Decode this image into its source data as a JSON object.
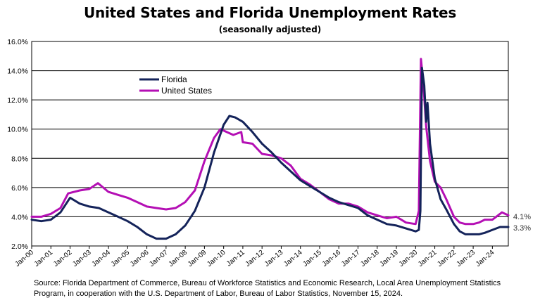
{
  "chart_data": {
    "type": "line",
    "title": "United States and Florida Unemployment Rates",
    "subtitle": "(seasonally adjusted)",
    "xlabel": "",
    "ylabel": "",
    "ylim": [
      2,
      16
    ],
    "yticks": [
      "16.0%",
      "14.0%",
      "12.0%",
      "10.0%",
      "8.0%",
      "6.0%",
      "4.0%",
      "2.0%"
    ],
    "ytick_values": [
      16,
      14,
      12,
      10,
      8,
      6,
      4,
      2
    ],
    "xticks": [
      "Jan-00",
      "Jan-01",
      "Jan-02",
      "Jan-03",
      "Jan-04",
      "Jan-05",
      "Jan-06",
      "Jan-07",
      "Jan-08",
      "Jan-09",
      "Jan-10",
      "Jan-11",
      "Jan-12",
      "Jan-13",
      "Jan-14",
      "Jan-15",
      "Jan-16",
      "Jan-17",
      "Jan-18",
      "Jan-19",
      "Jan-20",
      "Jan-21",
      "Jan-22",
      "Jan-23",
      "Jan-24"
    ],
    "xlim": [
      2000.0,
      2024.83
    ],
    "grid": "horizontal",
    "legend": "upper-left",
    "series": [
      {
        "name": "Florida",
        "color": "#14235a",
        "end_label": "3.3%",
        "points": [
          [
            2000.0,
            3.8
          ],
          [
            2000.5,
            3.7
          ],
          [
            2001.0,
            3.8
          ],
          [
            2001.5,
            4.3
          ],
          [
            2001.9,
            5.1
          ],
          [
            2002.0,
            5.3
          ],
          [
            2002.5,
            4.9
          ],
          [
            2003.0,
            4.7
          ],
          [
            2003.5,
            4.6
          ],
          [
            2004.0,
            4.3
          ],
          [
            2004.5,
            4.0
          ],
          [
            2005.0,
            3.7
          ],
          [
            2005.5,
            3.3
          ],
          [
            2006.0,
            2.8
          ],
          [
            2006.5,
            2.5
          ],
          [
            2007.0,
            2.5
          ],
          [
            2007.5,
            2.8
          ],
          [
            2008.0,
            3.4
          ],
          [
            2008.5,
            4.4
          ],
          [
            2009.0,
            6.0
          ],
          [
            2009.5,
            8.4
          ],
          [
            2010.0,
            10.3
          ],
          [
            2010.3,
            10.9
          ],
          [
            2010.6,
            10.8
          ],
          [
            2011.0,
            10.5
          ],
          [
            2011.5,
            9.8
          ],
          [
            2012.0,
            9.0
          ],
          [
            2012.5,
            8.4
          ],
          [
            2013.0,
            7.7
          ],
          [
            2013.5,
            7.1
          ],
          [
            2014.0,
            6.5
          ],
          [
            2014.5,
            6.1
          ],
          [
            2015.0,
            5.7
          ],
          [
            2015.5,
            5.3
          ],
          [
            2016.0,
            5.0
          ],
          [
            2016.5,
            4.8
          ],
          [
            2017.0,
            4.6
          ],
          [
            2017.5,
            4.1
          ],
          [
            2018.0,
            3.8
          ],
          [
            2018.5,
            3.5
          ],
          [
            2019.0,
            3.4
          ],
          [
            2019.5,
            3.2
          ],
          [
            2020.0,
            3.0
          ],
          [
            2020.17,
            3.1
          ],
          [
            2020.25,
            4.4
          ],
          [
            2020.33,
            14.2
          ],
          [
            2020.45,
            13.0
          ],
          [
            2020.55,
            10.5
          ],
          [
            2020.62,
            11.8
          ],
          [
            2020.75,
            9.0
          ],
          [
            2021.0,
            6.6
          ],
          [
            2021.3,
            5.2
          ],
          [
            2021.6,
            4.5
          ],
          [
            2022.0,
            3.5
          ],
          [
            2022.3,
            3.0
          ],
          [
            2022.6,
            2.8
          ],
          [
            2023.0,
            2.8
          ],
          [
            2023.3,
            2.8
          ],
          [
            2023.6,
            2.9
          ],
          [
            2024.0,
            3.1
          ],
          [
            2024.4,
            3.3
          ],
          [
            2024.83,
            3.3
          ]
        ]
      },
      {
        "name": "United States",
        "color": "#b40fb4",
        "end_label": "4.1%",
        "points": [
          [
            2000.0,
            4.0
          ],
          [
            2000.5,
            4.0
          ],
          [
            2001.0,
            4.2
          ],
          [
            2001.5,
            4.6
          ],
          [
            2001.9,
            5.6
          ],
          [
            2002.5,
            5.8
          ],
          [
            2003.0,
            5.9
          ],
          [
            2003.45,
            6.3
          ],
          [
            2004.0,
            5.7
          ],
          [
            2004.5,
            5.5
          ],
          [
            2005.0,
            5.3
          ],
          [
            2005.5,
            5.0
          ],
          [
            2006.0,
            4.7
          ],
          [
            2006.5,
            4.6
          ],
          [
            2007.0,
            4.5
          ],
          [
            2007.5,
            4.6
          ],
          [
            2008.0,
            5.0
          ],
          [
            2008.5,
            5.8
          ],
          [
            2009.0,
            7.8
          ],
          [
            2009.5,
            9.4
          ],
          [
            2009.83,
            10.0
          ],
          [
            2010.5,
            9.6
          ],
          [
            2010.92,
            9.8
          ],
          [
            2011.0,
            9.1
          ],
          [
            2011.5,
            9.0
          ],
          [
            2012.0,
            8.3
          ],
          [
            2012.5,
            8.2
          ],
          [
            2013.0,
            8.0
          ],
          [
            2013.5,
            7.5
          ],
          [
            2014.0,
            6.6
          ],
          [
            2014.5,
            6.2
          ],
          [
            2015.0,
            5.7
          ],
          [
            2015.5,
            5.2
          ],
          [
            2016.0,
            4.9
          ],
          [
            2016.5,
            4.9
          ],
          [
            2017.0,
            4.7
          ],
          [
            2017.5,
            4.3
          ],
          [
            2018.0,
            4.1
          ],
          [
            2018.5,
            3.9
          ],
          [
            2019.0,
            4.0
          ],
          [
            2019.5,
            3.6
          ],
          [
            2020.0,
            3.5
          ],
          [
            2020.17,
            4.4
          ],
          [
            2020.28,
            14.8
          ],
          [
            2020.4,
            13.2
          ],
          [
            2020.55,
            10.2
          ],
          [
            2020.75,
            7.8
          ],
          [
            2021.0,
            6.4
          ],
          [
            2021.3,
            6.0
          ],
          [
            2021.6,
            5.2
          ],
          [
            2022.0,
            4.0
          ],
          [
            2022.3,
            3.6
          ],
          [
            2022.6,
            3.5
          ],
          [
            2023.0,
            3.5
          ],
          [
            2023.3,
            3.6
          ],
          [
            2023.6,
            3.8
          ],
          [
            2024.0,
            3.8
          ],
          [
            2024.5,
            4.3
          ],
          [
            2024.83,
            4.1
          ]
        ]
      }
    ]
  },
  "source_text": "Source:  Florida Department of Commerce, Bureau of Workforce Statistics and Economic Research, Local Area Unemployment Statistics Program, in cooperation with the U.S. Department of Labor, Bureau of Labor Statistics, November 15, 2024."
}
